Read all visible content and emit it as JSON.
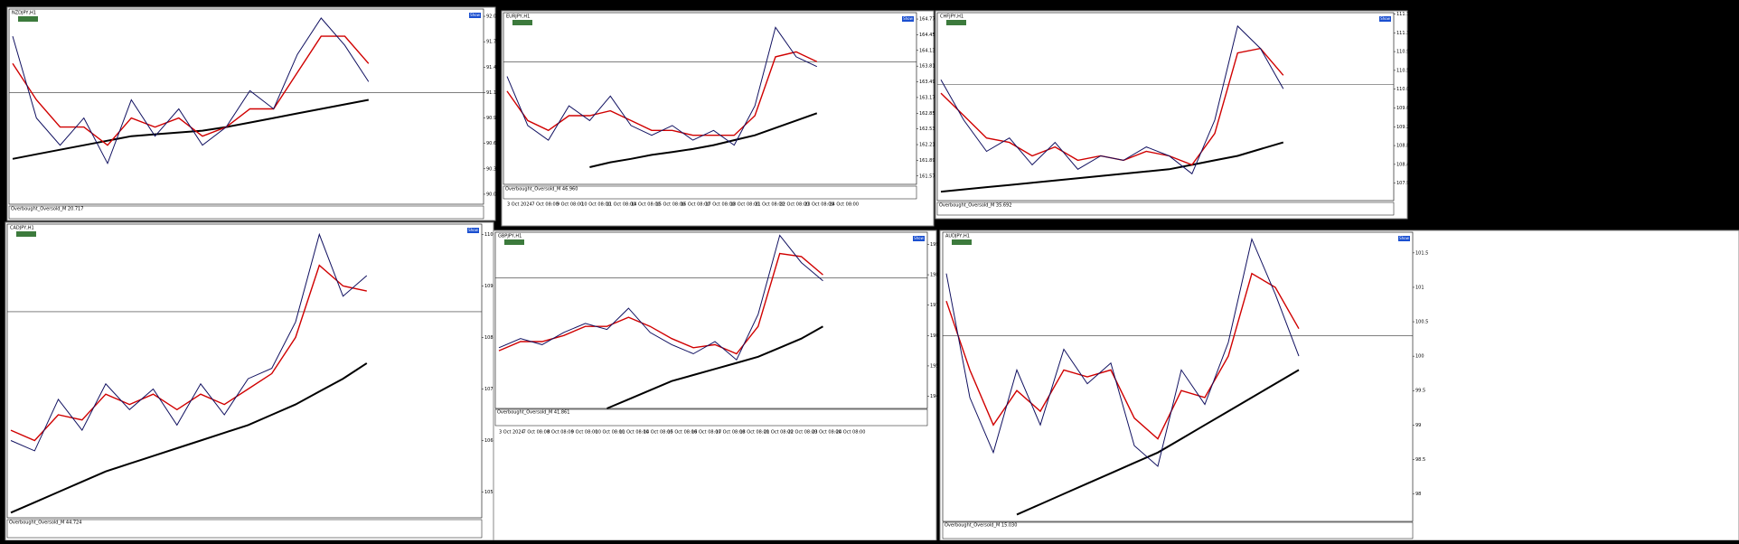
{
  "windows": [
    {
      "title": "NZDJPY,H1",
      "show": "Show",
      "indicator": "Overbought_Oversold_M 20.717",
      "ylim": [
        89.95,
        92.1
      ],
      "yticks": [
        92.02,
        91.74,
        91.46,
        91.18,
        90.9,
        90.62,
        90.34,
        90.06
      ],
      "level": 91.18,
      "close": [
        91.8,
        90.9,
        90.6,
        90.9,
        90.4,
        91.1,
        90.7,
        91.0,
        90.6,
        90.8,
        91.2,
        91.0,
        91.6,
        92.0,
        91.7,
        91.3
      ],
      "ma": [
        91.5,
        91.1,
        90.8,
        90.8,
        90.6,
        90.9,
        90.8,
        90.9,
        90.7,
        90.8,
        91.0,
        91.0,
        91.4,
        91.8,
        91.8,
        91.5
      ],
      "trend": [
        90.45,
        90.5,
        90.55,
        90.6,
        90.65,
        90.7,
        90.72,
        90.74,
        90.76,
        90.8,
        90.85,
        90.9,
        90.95,
        91.0,
        91.05,
        91.1
      ]
    },
    {
      "title": "EURJPY,H1",
      "show": "Show",
      "indicator": "Overbought_Oversold_M 46.960",
      "ylim": [
        161.4,
        164.9
      ],
      "yticks": [
        164.77,
        164.45,
        164.13,
        163.81,
        163.49,
        163.17,
        162.85,
        162.53,
        162.21,
        161.89,
        161.57
      ],
      "level": 163.9,
      "close": [
        163.6,
        162.6,
        162.3,
        163.0,
        162.7,
        163.2,
        162.6,
        162.4,
        162.6,
        162.3,
        162.5,
        162.2,
        163.0,
        164.6,
        164.0,
        163.8
      ],
      "ma": [
        163.3,
        162.7,
        162.5,
        162.8,
        162.8,
        162.9,
        162.7,
        162.5,
        162.5,
        162.4,
        162.4,
        162.4,
        162.8,
        164.0,
        164.1,
        163.9
      ],
      "trend": [
        null,
        null,
        null,
        null,
        161.75,
        161.85,
        161.92,
        162.0,
        162.06,
        162.12,
        162.2,
        162.3,
        162.4,
        162.55,
        162.7,
        162.85
      ],
      "xlabels": [
        "3 Oct 2024",
        "7 Oct 08:00",
        "9 Oct 08:00",
        "10 Oct 08:00",
        "11 Oct 08:00",
        "14 Oct 08:00",
        "15 Oct 08:00",
        "16 Oct 08:00",
        "17 Oct 08:00",
        "18 Oct 08:00",
        "21 Oct 08:00",
        "22 Oct 08:00",
        "23 Oct 08:00",
        "24 Oct 08:00"
      ]
    },
    {
      "title": "CHFJPY,H1",
      "show": "Show",
      "indicator": "Overbought_Oversold_M 35.692",
      "ylim": [
        107.6,
        111.8
      ],
      "yticks": [
        111.77,
        111.35,
        110.93,
        110.51,
        110.09,
        109.67,
        109.25,
        108.83,
        108.41,
        107.99
      ],
      "level": 110.2,
      "close": [
        110.3,
        109.4,
        108.7,
        109.0,
        108.4,
        108.9,
        108.3,
        108.6,
        108.5,
        108.8,
        108.6,
        108.2,
        109.4,
        111.5,
        111.0,
        110.1
      ],
      "ma": [
        110.0,
        109.5,
        109.0,
        108.9,
        108.6,
        108.8,
        108.5,
        108.6,
        108.5,
        108.7,
        108.6,
        108.4,
        109.1,
        110.9,
        111.0,
        110.4
      ],
      "trend": [
        107.8,
        107.85,
        107.9,
        107.95,
        108.0,
        108.05,
        108.1,
        108.15,
        108.2,
        108.25,
        108.3,
        108.4,
        108.5,
        108.6,
        108.75,
        108.9
      ]
    },
    {
      "title": "CADJPY,H1",
      "show": "Show",
      "indicator": "Overbought_Oversold_M 44.724",
      "ylim": [
        104.5,
        110.2
      ],
      "yticks": [
        110,
        109,
        108,
        107,
        106,
        105
      ],
      "level": 108.5,
      "close": [
        106.0,
        105.8,
        106.8,
        106.2,
        107.1,
        106.6,
        107.0,
        106.3,
        107.1,
        106.5,
        107.2,
        107.4,
        108.3,
        110.0,
        108.8,
        109.2
      ],
      "ma": [
        106.2,
        106.0,
        106.5,
        106.4,
        106.9,
        106.7,
        106.9,
        106.6,
        106.9,
        106.7,
        107.0,
        107.3,
        108.0,
        109.4,
        109.0,
        108.9
      ],
      "trend": [
        104.6,
        104.8,
        105.0,
        105.2,
        105.4,
        105.55,
        105.7,
        105.85,
        106.0,
        106.15,
        106.3,
        106.5,
        106.7,
        106.95,
        107.2,
        107.5
      ]
    },
    {
      "title": "GBPJPY,H1",
      "show": "Show",
      "indicator": "Overbought_Oversold_M 41.861",
      "ylim": [
        193.6,
        199.4
      ],
      "yticks": [
        199,
        198,
        197,
        196,
        195,
        194
      ],
      "level": 197.9,
      "close": [
        195.6,
        195.9,
        195.7,
        196.1,
        196.4,
        196.2,
        196.9,
        196.1,
        195.7,
        195.4,
        195.8,
        195.2,
        196.7,
        199.3,
        198.4,
        197.8
      ],
      "ma": [
        195.5,
        195.8,
        195.8,
        196.0,
        196.3,
        196.3,
        196.6,
        196.3,
        195.9,
        195.6,
        195.7,
        195.4,
        196.3,
        198.7,
        198.6,
        198.0
      ],
      "trend": [
        null,
        null,
        null,
        null,
        null,
        193.6,
        193.9,
        194.2,
        194.5,
        194.7,
        194.9,
        195.1,
        195.3,
        195.6,
        195.9,
        196.3
      ],
      "xlabels": [
        "3 Oct 2024",
        "7 Oct 08:00",
        "8 Oct 08:00",
        "9 Oct 08:00",
        "10 Oct 08:00",
        "11 Oct 08:00",
        "14 Oct 08:00",
        "15 Oct 08:00",
        "16 Oct 08:00",
        "17 Oct 08:00",
        "18 Oct 08:00",
        "21 Oct 08:00",
        "22 Oct 08:00",
        "23 Oct 08:00",
        "24 Oct 08:00"
      ]
    },
    {
      "title": "AUDJPY,H1",
      "show": "Show",
      "indicator": "Overbought_Oversold_M 15.030",
      "ylim": [
        97.6,
        101.8
      ],
      "yticks": [
        101.5,
        101,
        100.5,
        100,
        99.5,
        99,
        98.5,
        98
      ],
      "level": 100.3,
      "close": [
        101.2,
        99.4,
        98.6,
        99.8,
        99.0,
        100.1,
        99.6,
        99.9,
        98.7,
        98.4,
        99.8,
        99.3,
        100.2,
        101.7,
        100.9,
        100.0
      ],
      "ma": [
        100.8,
        99.8,
        99.0,
        99.5,
        99.2,
        99.8,
        99.7,
        99.8,
        99.1,
        98.8,
        99.5,
        99.4,
        100.0,
        101.2,
        101.0,
        100.4
      ],
      "trend": [
        null,
        null,
        null,
        97.7,
        97.85,
        98.0,
        98.15,
        98.3,
        98.45,
        98.6,
        98.8,
        99.0,
        99.2,
        99.4,
        99.6,
        99.8
      ]
    }
  ]
}
